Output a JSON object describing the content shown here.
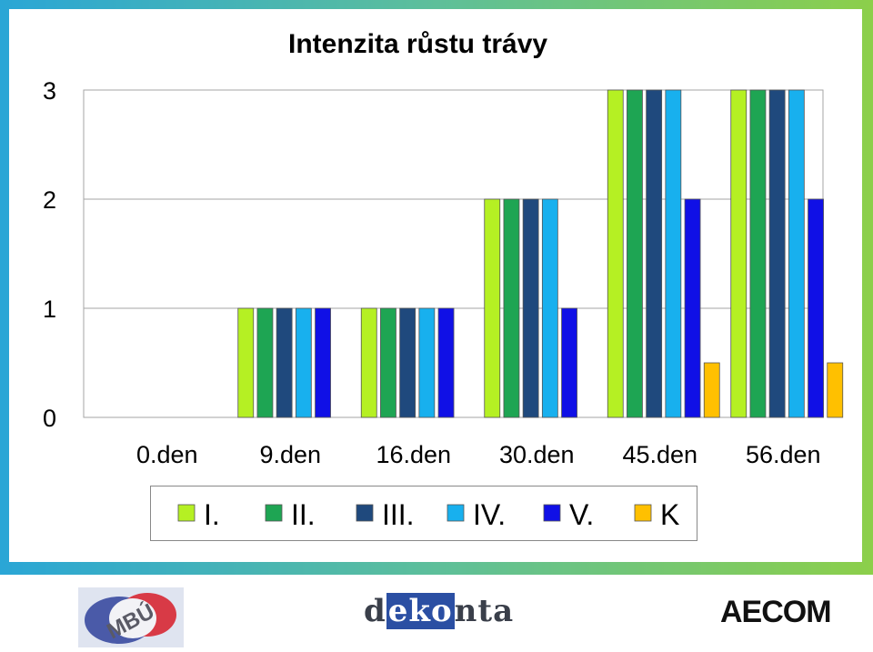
{
  "chart_data": {
    "type": "bar",
    "title": "Intenzita růstu trávy",
    "categories": [
      "0.den",
      "9.den",
      "16.den",
      "30.den",
      "45.den",
      "56.den"
    ],
    "series": [
      {
        "name": "I.",
        "color": "#b5f023",
        "values": [
          0,
          1,
          1,
          2,
          3,
          3
        ]
      },
      {
        "name": "II.",
        "color": "#1ea553",
        "values": [
          0,
          1,
          1,
          2,
          3,
          3
        ]
      },
      {
        "name": "III.",
        "color": "#1f497d",
        "values": [
          0,
          1,
          1,
          2,
          3,
          3
        ]
      },
      {
        "name": "IV.",
        "color": "#18b0ee",
        "values": [
          0,
          1,
          1,
          2,
          3,
          3
        ]
      },
      {
        "name": "V.",
        "color": "#1010e6",
        "values": [
          0,
          1,
          1,
          1,
          2,
          2
        ]
      },
      {
        "name": "K",
        "color": "#ffc000",
        "values": [
          0,
          0,
          0,
          0,
          0.5,
          0.5
        ]
      }
    ],
    "ylim": [
      0,
      3
    ],
    "yticks": [
      0,
      1,
      2,
      3
    ],
    "grid": true,
    "legend_position": "bottom"
  },
  "logos": {
    "mbu": "MBÚ",
    "dekonta_prefix": "d",
    "dekonta_mid": "eko",
    "dekonta_suffix": "nta",
    "aecom": "AECOM"
  }
}
